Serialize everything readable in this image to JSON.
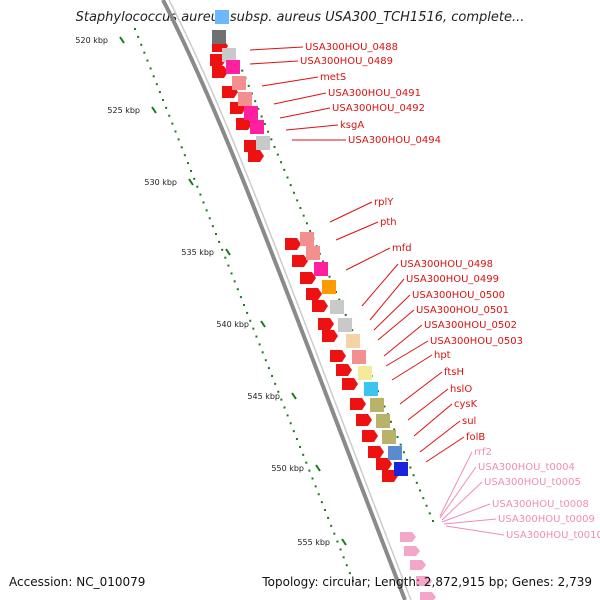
{
  "title": "Staphylococcus aureus subsp. aureus USA300_TCH1516, complete...",
  "footer": {
    "accession": "Accession: NC_010079",
    "topology": "Topology: circular; Length: 2,872,915 bp; Genes: 2,739"
  },
  "ticks": [
    "520 kbp",
    "525 kbp",
    "530 kbp",
    "535 kbp",
    "540 kbp",
    "545 kbp",
    "550 kbp",
    "555 kbp"
  ],
  "genes": [
    {
      "label": "USA300HOU_0488",
      "color": "#dd1111"
    },
    {
      "label": "USA300HOU_0489",
      "color": "#dd1111"
    },
    {
      "label": "metS",
      "color": "#dd1111"
    },
    {
      "label": "USA300HOU_0491",
      "color": "#dd1111"
    },
    {
      "label": "USA300HOU_0492",
      "color": "#dd1111"
    },
    {
      "label": "ksgA",
      "color": "#dd1111"
    },
    {
      "label": "USA300HOU_0494",
      "color": "#dd1111"
    },
    {
      "label": "rplY",
      "color": "#dd1111"
    },
    {
      "label": "pth",
      "color": "#dd1111"
    },
    {
      "label": "mfd",
      "color": "#dd1111"
    },
    {
      "label": "USA300HOU_0498",
      "color": "#dd1111"
    },
    {
      "label": "USA300HOU_0499",
      "color": "#dd1111"
    },
    {
      "label": "USA300HOU_0500",
      "color": "#dd1111"
    },
    {
      "label": "USA300HOU_0501",
      "color": "#dd1111"
    },
    {
      "label": "USA300HOU_0502",
      "color": "#dd1111"
    },
    {
      "label": "USA300HOU_0503",
      "color": "#dd1111"
    },
    {
      "label": "hpt",
      "color": "#dd1111"
    },
    {
      "label": "ftsH",
      "color": "#dd1111"
    },
    {
      "label": "hslO",
      "color": "#dd1111"
    },
    {
      "label": "cysK",
      "color": "#dd1111"
    },
    {
      "label": "sul",
      "color": "#dd1111"
    },
    {
      "label": "folB",
      "color": "#dd1111"
    },
    {
      "label": "rrf2",
      "color": "#f08cb4"
    },
    {
      "label": "USA300HOU_t0004",
      "color": "#f08cb4"
    },
    {
      "label": "USA300HOU_t0005",
      "color": "#f08cb4"
    },
    {
      "label": "USA300HOU_t0008",
      "color": "#f08cb4"
    },
    {
      "label": "USA300HOU_t0009",
      "color": "#f08cb4"
    },
    {
      "label": "USA300HOU_t0010",
      "color": "#f08cb4"
    }
  ],
  "colors": {
    "backbone": "#8a8a8a",
    "cds": "#ee1111",
    "rna": "#f4a6c8",
    "tick": "#1a7a1a"
  }
}
